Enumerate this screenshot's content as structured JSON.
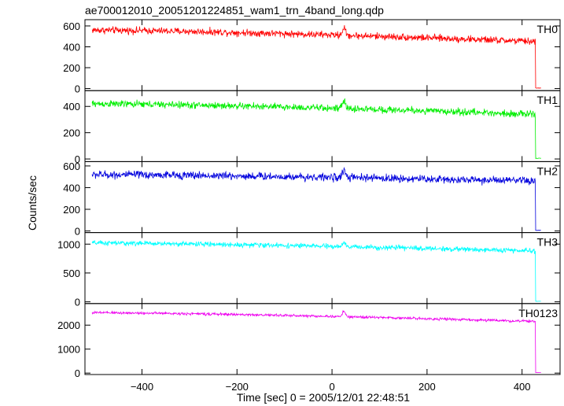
{
  "chart_data": {
    "type": "line",
    "title": "ae700012010_20051201224851_wam1_trn_4band_long.qdp",
    "xlabel": "Time [sec] 0 = 2005/12/01 22:48:51",
    "ylabel": "Counts/sec",
    "xlim": [
      -520,
      480
    ],
    "xticks": [
      -400,
      -200,
      0,
      200,
      400
    ],
    "xtick_labels": [
      "−400",
      "−200",
      "0",
      "200",
      "400"
    ],
    "grid": false,
    "series": [
      {
        "name": "TH0",
        "color": "#ff0000",
        "ylim": [
          -20,
          660
        ],
        "yticks": [
          0,
          200,
          400,
          600
        ],
        "ytick_labels": [
          "0",
          "200",
          "400",
          "600"
        ],
        "start_level": 560,
        "end_level": 450,
        "noise": 28,
        "peak": 75,
        "drop_time": 428,
        "post_level": 5,
        "x": [
          -505,
          -400,
          -300,
          -200,
          -100,
          0,
          25,
          50,
          100,
          200,
          300,
          400,
          425,
          428,
          440
        ],
        "values": [
          555,
          560,
          555,
          550,
          550,
          545,
          620,
          530,
          520,
          500,
          480,
          455,
          450,
          5,
          5
        ]
      },
      {
        "name": "TH1",
        "color": "#00ee00",
        "ylim": [
          -20,
          520
        ],
        "yticks": [
          0,
          200,
          400
        ],
        "ytick_labels": [
          "0",
          "200",
          "400"
        ],
        "start_level": 420,
        "end_level": 340,
        "noise": 22,
        "peak": 60,
        "drop_time": 428,
        "post_level": 5,
        "x": [
          -505,
          -400,
          -300,
          -200,
          -100,
          0,
          25,
          50,
          100,
          200,
          300,
          400,
          425,
          428,
          440
        ],
        "values": [
          420,
          420,
          415,
          410,
          410,
          400,
          470,
          390,
          380,
          370,
          355,
          345,
          340,
          5,
          5
        ]
      },
      {
        "name": "TH2",
        "color": "#0000dd",
        "ylim": [
          -15,
          640
        ],
        "yticks": [
          0,
          200,
          400,
          600
        ],
        "ytick_labels": [
          "0",
          "200",
          "400",
          "600"
        ],
        "start_level": 520,
        "end_level": 460,
        "noise": 30,
        "peak": 75,
        "drop_time": 428,
        "post_level": 5,
        "x": [
          -505,
          -400,
          -300,
          -200,
          -100,
          0,
          25,
          50,
          100,
          200,
          300,
          400,
          425,
          428,
          440
        ],
        "values": [
          520,
          515,
          512,
          510,
          505,
          500,
          580,
          495,
          490,
          485,
          475,
          462,
          460,
          5,
          5
        ]
      },
      {
        "name": "TH3",
        "color": "#00ffff",
        "ylim": [
          -30,
          1200
        ],
        "yticks": [
          0,
          500,
          1000
        ],
        "ytick_labels": [
          "0",
          "500",
          "1000"
        ],
        "start_level": 1020,
        "end_level": 880,
        "noise": 35,
        "peak": 60,
        "drop_time": 428,
        "post_level": 10,
        "x": [
          -505,
          -400,
          -300,
          -200,
          -100,
          0,
          25,
          50,
          100,
          200,
          300,
          400,
          425,
          428,
          440
        ],
        "values": [
          1020,
          1015,
          1005,
          995,
          985,
          975,
          1030,
          965,
          950,
          930,
          910,
          885,
          880,
          10,
          10
        ]
      },
      {
        "name": "TH0123",
        "color": "#ee00ee",
        "ylim": [
          -60,
          2900
        ],
        "yticks": [
          0,
          1000,
          2000
        ],
        "ytick_labels": [
          "0",
          "1000",
          "2000"
        ],
        "start_level": 2520,
        "end_level": 2150,
        "noise": 45,
        "peak": 230,
        "drop_time": 428,
        "post_level": 20,
        "x": [
          -505,
          -400,
          -300,
          -200,
          -100,
          0,
          25,
          50,
          100,
          200,
          300,
          400,
          425,
          428,
          440
        ],
        "values": [
          2520,
          2510,
          2490,
          2470,
          2450,
          2430,
          2660,
          2380,
          2340,
          2290,
          2230,
          2170,
          2150,
          20,
          20
        ]
      }
    ]
  }
}
